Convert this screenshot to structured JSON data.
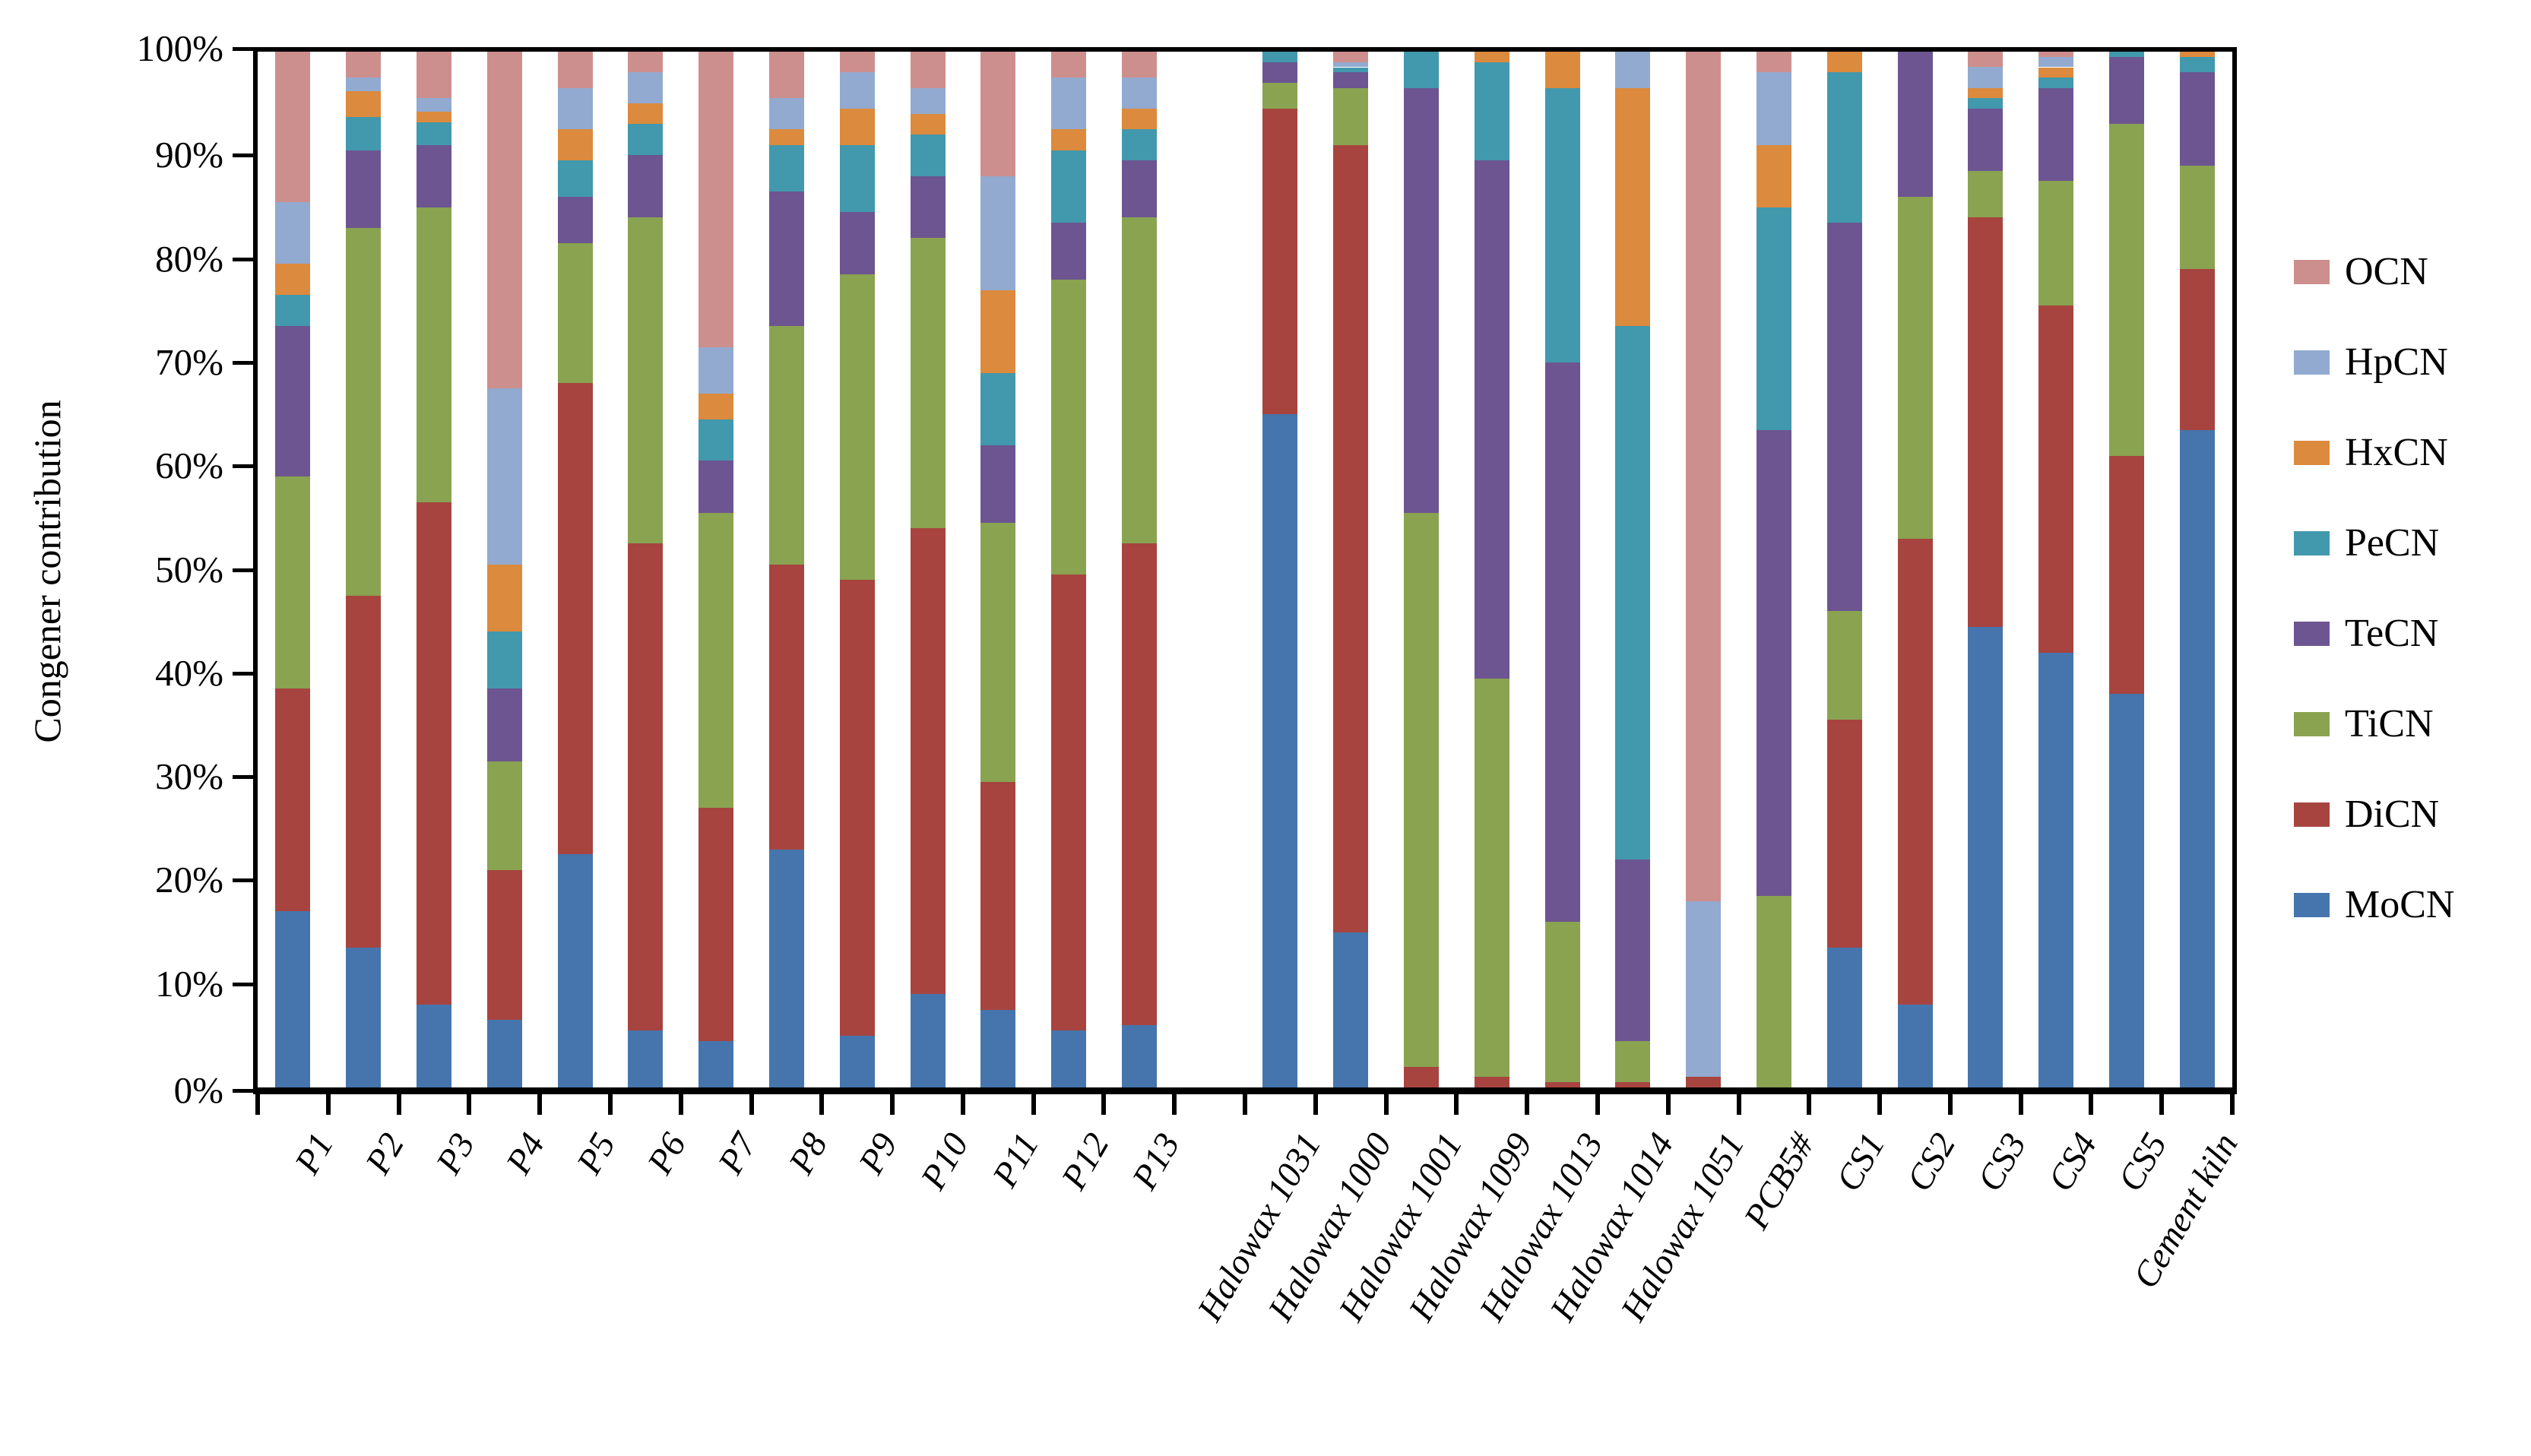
{
  "figure": {
    "y_axis_title": "Congener contribution"
  },
  "chart_data": {
    "type": "bar",
    "stacked": true,
    "normalized_percent": true,
    "title": "",
    "xlabel": "",
    "ylabel": "Congener contribution",
    "ylim": [
      0,
      100
    ],
    "grid": false,
    "ytick_labels": [
      "0%",
      "10%",
      "20%",
      "30%",
      "40%",
      "50%",
      "60%",
      "70%",
      "80%",
      "90%",
      "100%"
    ],
    "legend_position": "right",
    "legend_order_top_to_bottom": [
      "OCN",
      "HpCN",
      "HxCN",
      "PeCN",
      "TeCN",
      "TiCN",
      "DiCN",
      "MoCN"
    ],
    "categories": [
      "P1",
      "P2",
      "P3",
      "P4",
      "P5",
      "P6",
      "P7",
      "P8",
      "P9",
      "P10",
      "P11",
      "P12",
      "P13",
      "Halowax 1031",
      "Halowax 1000",
      "Halowax 1001",
      "Halowax 1099",
      "Halowax 1013",
      "Halowax 1014",
      "Halowax 1051",
      "PCB5#",
      "CS1",
      "CS2",
      "CS3",
      "CS4",
      "CS5",
      "Cement kiln"
    ],
    "gap_after_category": "P13",
    "series": [
      {
        "name": "MoCN",
        "color": "#4575ac",
        "values": [
          17,
          13.5,
          8,
          6.5,
          22.5,
          5.5,
          4.5,
          23,
          5,
          9,
          7.5,
          5.5,
          6,
          65,
          15,
          0,
          0,
          0,
          0,
          0,
          0,
          13.5,
          8,
          44.5,
          42,
          38,
          63.5
        ]
      },
      {
        "name": "DiCN",
        "color": "#a7443f",
        "values": [
          21.5,
          34,
          48.5,
          14.5,
          45.5,
          47,
          22.5,
          27.5,
          44,
          45,
          22,
          44,
          46.5,
          29.5,
          76,
          2,
          1,
          0.5,
          0.5,
          1,
          0,
          22,
          45,
          39.5,
          33.5,
          23,
          15.5
        ]
      },
      {
        "name": "TiCN",
        "color": "#89a351",
        "values": [
          20.5,
          35.5,
          28.5,
          10.5,
          13.5,
          31.5,
          28.5,
          23,
          29.5,
          28,
          25,
          28.5,
          31.5,
          2.5,
          5.5,
          53.5,
          38.5,
          15.5,
          4,
          0,
          18.5,
          10.5,
          33,
          4.5,
          12,
          32,
          10
        ]
      },
      {
        "name": "TeCN",
        "color": "#6c5590",
        "values": [
          14.5,
          7.5,
          6,
          7,
          4.5,
          6,
          5,
          13,
          6,
          6,
          7.5,
          5.5,
          5.5,
          2,
          1.5,
          41,
          50,
          54,
          17.5,
          0,
          45,
          37.5,
          14,
          6,
          9,
          6.5,
          9
        ]
      },
      {
        "name": "PeCN",
        "color": "#4298ac",
        "values": [
          3,
          3.2,
          2.2,
          5.5,
          3.5,
          3,
          4,
          4.5,
          6.5,
          4,
          7,
          7,
          3,
          1,
          0.5,
          3.5,
          9.5,
          26.5,
          51.5,
          0,
          21.5,
          14.5,
          0,
          1,
          1,
          0.5,
          1.5
        ]
      },
      {
        "name": "HxCN",
        "color": "#dc8a3d",
        "values": [
          3,
          2.5,
          1,
          6.5,
          3,
          2,
          2.5,
          1.5,
          3.5,
          2,
          8,
          2,
          2,
          0,
          0,
          0,
          1,
          3.5,
          23,
          0,
          6,
          2,
          0,
          1,
          1,
          0,
          0.5
        ]
      },
      {
        "name": "HpCN",
        "color": "#92aacf",
        "values": [
          6,
          1.3,
          1.3,
          17,
          4,
          3,
          4.5,
          3,
          3.5,
          2.5,
          11,
          5,
          3,
          0,
          0.5,
          0,
          0,
          0,
          3.5,
          17,
          7,
          0,
          0,
          2,
          1,
          0,
          0
        ]
      },
      {
        "name": "OCN",
        "color": "#cd8f8e",
        "values": [
          14.5,
          2.5,
          4.5,
          32.5,
          3.5,
          2,
          28.5,
          4.5,
          2,
          3.5,
          12,
          2.5,
          2.5,
          0,
          1,
          0,
          0,
          0,
          0,
          82,
          2,
          0,
          0,
          1.5,
          0.5,
          0,
          0
        ]
      }
    ]
  }
}
